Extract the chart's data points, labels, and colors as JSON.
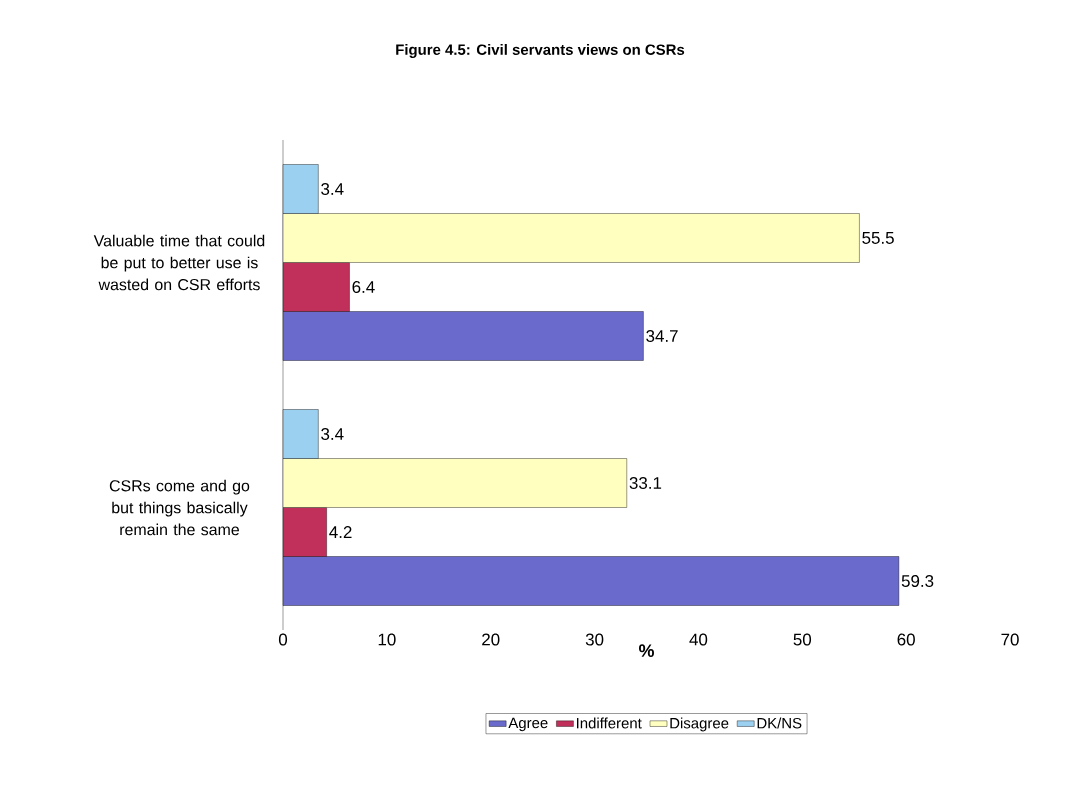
{
  "chart_data": {
    "type": "bar",
    "orientation": "horizontal",
    "title": "Figure 4.5: Civil servants views on CSRs",
    "xlabel": "%",
    "categories": [
      "Valuable time that could be put to better use is wasted on CSR efforts",
      "CSRs come and go but things basically remain the same"
    ],
    "series": [
      {
        "name": "Agree",
        "color": "#6a6acd",
        "values": [
          34.7,
          59.3
        ]
      },
      {
        "name": "Indifferent",
        "color": "#c0305a",
        "values": [
          6.4,
          4.2
        ]
      },
      {
        "name": "Disagree",
        "color": "#ffffc0",
        "values": [
          55.5,
          33.1
        ]
      },
      {
        "name": "DK/NS",
        "color": "#9cd0f0",
        "values": [
          3.4,
          3.4
        ]
      }
    ],
    "xlim": [
      0,
      70
    ],
    "xticks": [
      0,
      10,
      20,
      30,
      40,
      50,
      60,
      70
    ],
    "data_labels": true,
    "grid": false,
    "legend": "bottom"
  }
}
